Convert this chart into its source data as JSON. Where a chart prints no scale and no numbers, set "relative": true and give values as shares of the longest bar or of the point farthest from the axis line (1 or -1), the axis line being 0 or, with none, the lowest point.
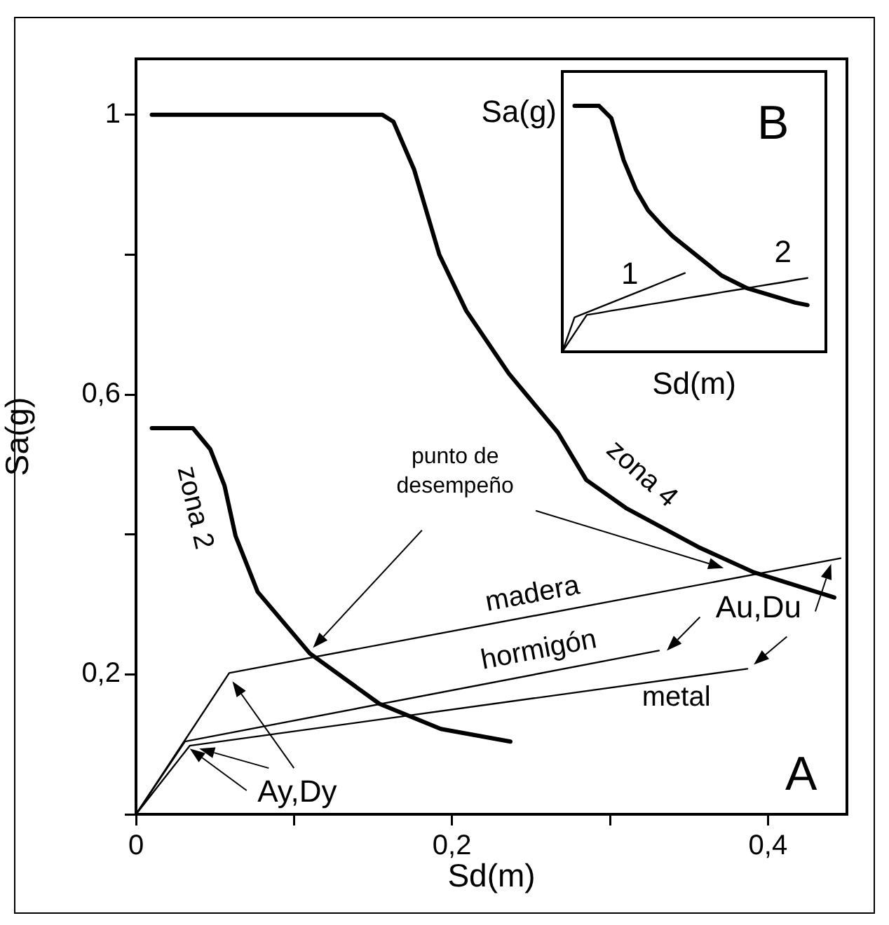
{
  "chart_data": [
    {
      "type": "line",
      "xlabel": "Sd(m)",
      "ylabel": "Sa(g)",
      "xlim": [
        0,
        0.45
      ],
      "ylim": [
        0,
        1.08
      ],
      "xticks": [
        0,
        {
          "value": 0.1,
          "label": null
        },
        {
          "value": 0.2,
          "label": "0,2"
        },
        {
          "value": 0.3,
          "label": null
        },
        {
          "value": 0.4,
          "label": "0,4"
        }
      ],
      "yticks": [
        {
          "value": 0,
          "label": null
        },
        {
          "value": 0.2,
          "label": "0,2"
        },
        {
          "value": 0.4,
          "label": null
        },
        {
          "value": 0.6,
          "label": "0,6"
        },
        {
          "value": 0.8,
          "label": null
        },
        1
      ],
      "grid": false,
      "marker": "none",
      "line_style": "solid",
      "series": [
        {
          "name": "zona 2",
          "color": "#000000",
          "x": [
            0.01,
            0.036,
            0.047,
            0.056,
            0.063,
            0.077,
            0.11,
            0.154,
            0.193,
            0.237
          ],
          "values": [
            0.552,
            0.552,
            0.522,
            0.47,
            0.398,
            0.318,
            0.23,
            0.158,
            0.122,
            0.104
          ]
        },
        {
          "name": "zona 4",
          "color": "#000000",
          "x": [
            0.01,
            0.156,
            0.163,
            0.176,
            0.192,
            0.209,
            0.236,
            0.267,
            0.285,
            0.31,
            0.356,
            0.391,
            0.442
          ],
          "values": [
            1,
            1,
            0.99,
            0.922,
            0.8,
            0.72,
            0.63,
            0.546,
            0.478,
            0.438,
            0.382,
            0.346,
            0.31
          ]
        },
        {
          "name": "madera",
          "color": "#000000",
          "x": [
            0,
            0.059,
            0.446
          ],
          "values": [
            0,
            0.202,
            0.366
          ]
        },
        {
          "name": "hormigón",
          "color": "#000000",
          "x": [
            0,
            0.031,
            0.331
          ],
          "values": [
            0,
            0.104,
            0.234
          ]
        },
        {
          "name": "metal",
          "color": "#000000",
          "x": [
            0,
            0.034,
            0.387
          ],
          "values": [
            0,
            0.098,
            0.208
          ]
        }
      ],
      "annotations": [
        "punto de desempeño",
        "Au,Du",
        "Ay,Dy",
        "A"
      ]
    },
    {
      "type": "line",
      "relative": true,
      "xlabel": "Sd(m)",
      "ylabel": "Sa(g)",
      "tick_labels": false,
      "grid": false,
      "marker": "none",
      "line_style": "solid",
      "categories": [
        null,
        null,
        null,
        null,
        null,
        null,
        null,
        null,
        null,
        null,
        null,
        null,
        null,
        null,
        null,
        null,
        null,
        null,
        null,
        null,
        null
      ],
      "series": [
        {
          "color": "#000000",
          "values": [
            null,
            1,
            1,
            1,
            0.95,
            0.78,
            0.66,
            0.575,
            0.52,
            0.47,
            0.43,
            0.39,
            0.35,
            0.31,
            0.285,
            0.26,
            0.245,
            0.23,
            0.215,
            0.2,
            0.19
          ]
        },
        {
          "name": "1",
          "color": "#000000",
          "values": [
            0,
            0.14,
            0.16,
            0.18,
            0.2,
            0.22,
            0.24,
            0.26,
            0.28,
            0.3,
            0.32,
            null,
            null,
            null,
            null,
            null,
            null,
            null,
            null,
            null,
            null
          ]
        },
        {
          "name": "2",
          "color": "#000000",
          "values": [
            0,
            0.075,
            0.15,
            0.158,
            0.167,
            0.175,
            0.183,
            0.192,
            0.2,
            0.208,
            0.217,
            0.225,
            0.233,
            0.242,
            0.25,
            0.258,
            0.267,
            0.275,
            0.283,
            0.292,
            0.3
          ]
        }
      ],
      "annotations": [
        "B"
      ]
    }
  ]
}
